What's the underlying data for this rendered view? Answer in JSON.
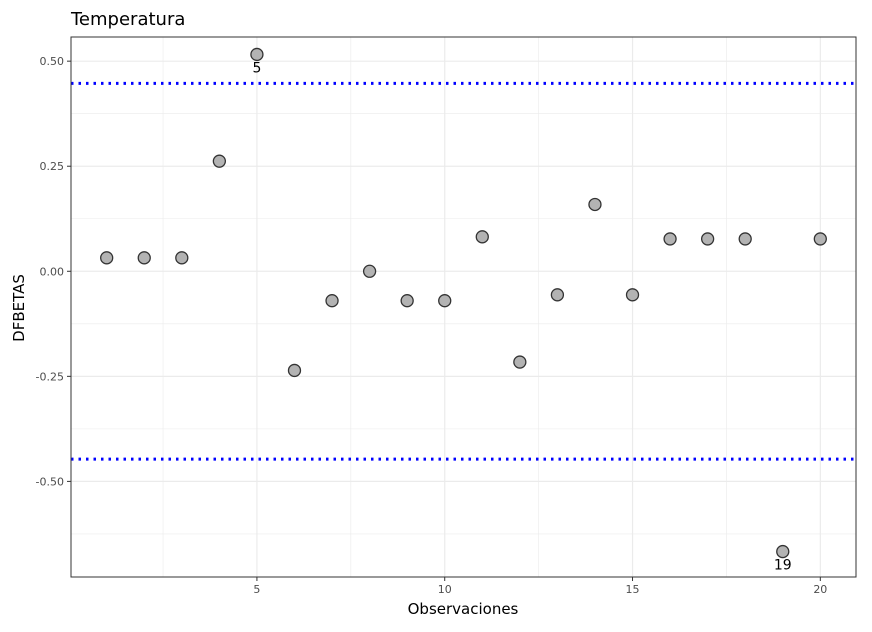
{
  "chart_data": {
    "type": "scatter",
    "title": "Temperatura",
    "xlabel": "Observaciones",
    "ylabel": "DFBETAS",
    "xlim": [
      0.05,
      20.95
    ],
    "ylim": [
      -0.7275,
      0.5575
    ],
    "x_ticks": [
      5,
      10,
      15,
      20
    ],
    "x_tick_labels": [
      "5",
      "10",
      "15",
      "20"
    ],
    "x_minor_ticks": [
      2.5,
      7.5,
      12.5,
      17.5
    ],
    "y_ticks": [
      0.5,
      0.25,
      0.0,
      -0.25,
      -0.5
    ],
    "y_tick_labels": [
      "0.50",
      "0.25",
      "0.00",
      "-0.25",
      "-0.50"
    ],
    "y_minor_ticks": [
      0.375,
      0.125,
      -0.125,
      -0.375,
      -0.625
    ],
    "grid": true,
    "x": [
      1,
      2,
      3,
      4,
      5,
      6,
      7,
      8,
      9,
      10,
      11,
      12,
      13,
      14,
      15,
      16,
      17,
      18,
      19,
      20
    ],
    "y": [
      0.032,
      0.032,
      0.032,
      0.262,
      0.516,
      -0.236,
      -0.07,
      0.0,
      -0.07,
      -0.07,
      0.082,
      -0.216,
      -0.056,
      0.159,
      -0.056,
      0.077,
      0.077,
      0.077,
      -0.667,
      0.077
    ],
    "point_labels": [
      {
        "x": 5,
        "y": 0.516,
        "text": "5"
      },
      {
        "x": 19,
        "y": -0.667,
        "text": "19"
      }
    ],
    "threshold_lines": [
      0.447,
      -0.447
    ],
    "colors": {
      "point_fill": "#b3b3b3",
      "point_stroke": "#333333",
      "threshold": "#0000ff",
      "grid": "#ebebeb",
      "panel_border": "#333333"
    }
  }
}
